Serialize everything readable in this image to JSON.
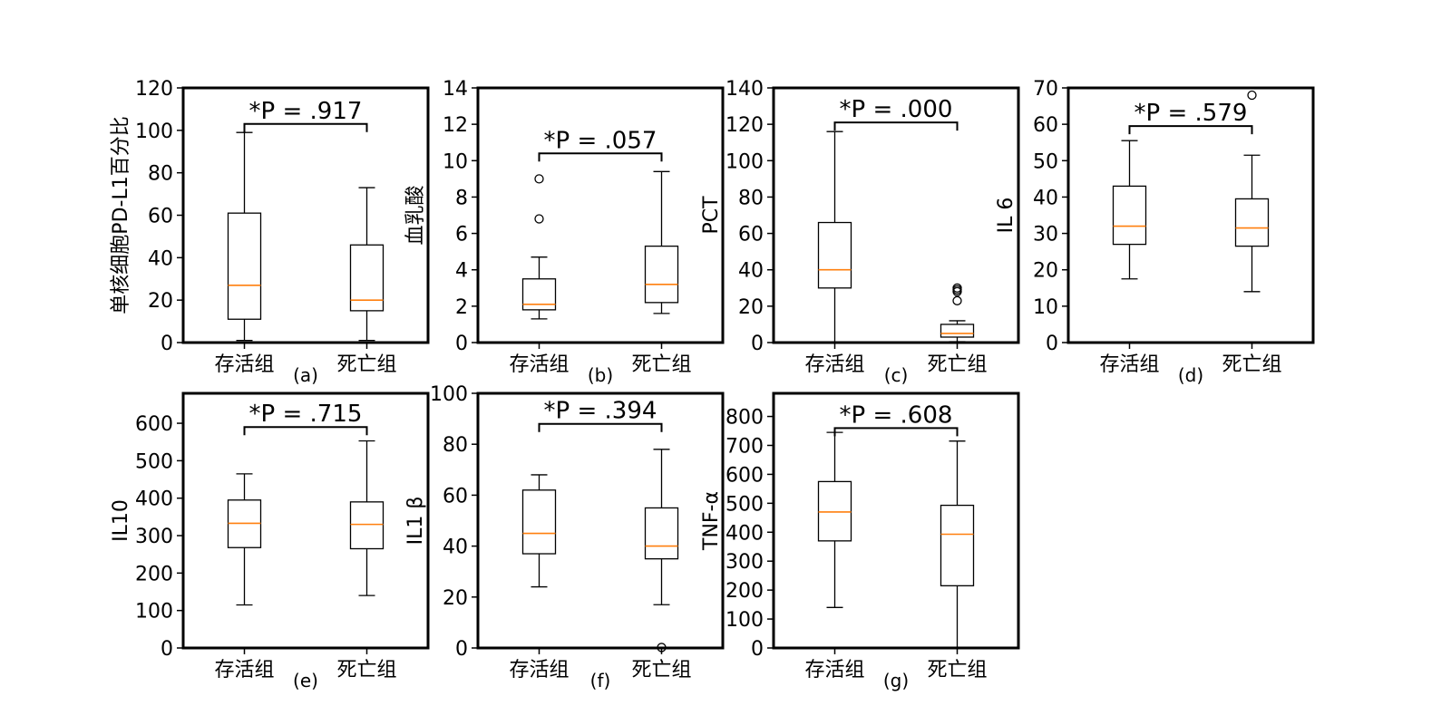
{
  "chart_data": [
    {
      "type": "box",
      "panel_label": "(a)",
      "ylabel": "单核细胞PD-L1百分比",
      "categories": [
        "存活组",
        "死亡组"
      ],
      "ylim": [
        0,
        120
      ],
      "yticks": [
        0,
        20,
        40,
        60,
        80,
        100,
        120
      ],
      "p_label": "*P = .917",
      "bracket_y": 103,
      "boxes": [
        {
          "whislo": 1,
          "q1": 11,
          "med": 27,
          "q3": 61,
          "whishi": 99,
          "fliers": []
        },
        {
          "whislo": 1,
          "q1": 15,
          "med": 20,
          "q3": 46,
          "whishi": 73,
          "fliers": []
        }
      ]
    },
    {
      "type": "box",
      "panel_label": "(b)",
      "ylabel": "血乳酸",
      "categories": [
        "存活组",
        "死亡组"
      ],
      "ylim": [
        0,
        14
      ],
      "yticks": [
        0,
        2,
        4,
        6,
        8,
        10,
        12,
        14
      ],
      "p_label": "*P = .057",
      "bracket_y": 10.4,
      "boxes": [
        {
          "whislo": 1.3,
          "q1": 1.8,
          "med": 2.1,
          "q3": 3.5,
          "whishi": 4.7,
          "fliers": [
            6.8,
            9.0
          ]
        },
        {
          "whislo": 1.6,
          "q1": 2.2,
          "med": 3.2,
          "q3": 5.3,
          "whishi": 9.4,
          "fliers": []
        }
      ]
    },
    {
      "type": "box",
      "panel_label": "(c)",
      "ylabel": "PCT",
      "categories": [
        "存活组",
        "死亡组"
      ],
      "ylim": [
        0,
        140
      ],
      "yticks": [
        0,
        20,
        40,
        60,
        80,
        100,
        120,
        140
      ],
      "p_label": "*P = .000",
      "bracket_y": 121,
      "boxes": [
        {
          "whislo": 0,
          "q1": 30,
          "med": 40,
          "q3": 66,
          "whishi": 116,
          "fliers": []
        },
        {
          "whislo": 0.5,
          "q1": 3,
          "med": 5,
          "q3": 10,
          "whishi": 12,
          "fliers": [
            23,
            28,
            29,
            30
          ]
        }
      ]
    },
    {
      "type": "box",
      "panel_label": "(d)",
      "ylabel": "IL 6",
      "categories": [
        "存活组",
        "死亡组"
      ],
      "ylim": [
        0,
        70
      ],
      "yticks": [
        0,
        10,
        20,
        30,
        40,
        50,
        60,
        70
      ],
      "p_label": "*P = .579",
      "bracket_y": 59.5,
      "boxes": [
        {
          "whislo": 17.5,
          "q1": 27,
          "med": 32,
          "q3": 43,
          "whishi": 55.5,
          "fliers": []
        },
        {
          "whislo": 14,
          "q1": 26.5,
          "med": 31.5,
          "q3": 39.5,
          "whishi": 51.5,
          "fliers": [
            68
          ]
        }
      ]
    },
    {
      "type": "box",
      "panel_label": "(e)",
      "ylabel": "IL10",
      "categories": [
        "存活组",
        "死亡组"
      ],
      "ylim": [
        0,
        680
      ],
      "yticks": [
        0,
        100,
        200,
        300,
        400,
        500,
        600
      ],
      "p_label": "*P = .715",
      "bracket_y": 590,
      "boxes": [
        {
          "whislo": 115,
          "q1": 268,
          "med": 333,
          "q3": 395,
          "whishi": 465,
          "fliers": []
        },
        {
          "whislo": 140,
          "q1": 265,
          "med": 330,
          "q3": 390,
          "whishi": 553,
          "fliers": []
        }
      ]
    },
    {
      "type": "box",
      "panel_label": "(f)",
      "ylabel": "IL1 β",
      "categories": [
        "存活组",
        "死亡组"
      ],
      "ylim": [
        0,
        100
      ],
      "yticks": [
        0,
        20,
        40,
        60,
        80,
        100
      ],
      "p_label": "*P = .394",
      "bracket_y": 88,
      "boxes": [
        {
          "whislo": 24,
          "q1": 37,
          "med": 45,
          "q3": 62,
          "whishi": 68,
          "fliers": []
        },
        {
          "whislo": 17,
          "q1": 35,
          "med": 40,
          "q3": 55,
          "whishi": 78,
          "fliers": [
            0.2
          ]
        }
      ]
    },
    {
      "type": "box",
      "panel_label": "(g)",
      "ylabel": "TNF-α",
      "categories": [
        "存活组",
        "死亡组"
      ],
      "ylim": [
        0,
        880
      ],
      "yticks": [
        0,
        100,
        200,
        300,
        400,
        500,
        600,
        700,
        800
      ],
      "p_label": "*P = .608",
      "bracket_y": 760,
      "boxes": [
        {
          "whislo": 140,
          "q1": 370,
          "med": 470,
          "q3": 575,
          "whishi": 745,
          "fliers": []
        },
        {
          "whislo": 0,
          "q1": 215,
          "med": 393,
          "q3": 493,
          "whishi": 715,
          "fliers": []
        }
      ]
    }
  ]
}
